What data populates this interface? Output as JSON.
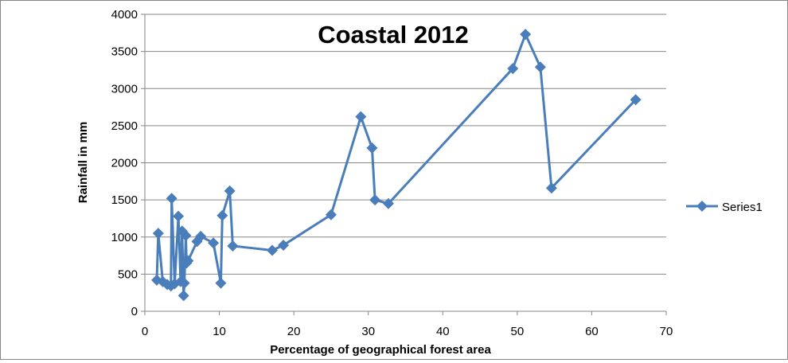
{
  "chart_data": {
    "type": "scatter",
    "title": "Coastal 2012",
    "xlabel": "Percentage of geographical  forest area",
    "ylabel": "Rainfall in mm",
    "xlim": [
      0,
      70
    ],
    "ylim": [
      0,
      4000
    ],
    "xticks": [
      0,
      10,
      20,
      30,
      40,
      50,
      60,
      70
    ],
    "yticks": [
      0,
      500,
      1000,
      1500,
      2000,
      2500,
      3000,
      3500,
      4000
    ],
    "grid": "horizontal",
    "legend_position": "right",
    "marker": "diamond",
    "line": "straight",
    "color": "#4a7ebb",
    "series": [
      {
        "name": "Series1",
        "points": [
          [
            1.6,
            420
          ],
          [
            1.8,
            1050
          ],
          [
            2.4,
            400
          ],
          [
            3.0,
            360
          ],
          [
            3.5,
            340
          ],
          [
            3.6,
            1520
          ],
          [
            4.0,
            370
          ],
          [
            4.5,
            1280
          ],
          [
            4.8,
            400
          ],
          [
            5.0,
            1080
          ],
          [
            5.2,
            210
          ],
          [
            5.3,
            380
          ],
          [
            5.5,
            1020
          ],
          [
            5.6,
            650
          ],
          [
            5.8,
            680
          ],
          [
            7.0,
            940
          ],
          [
            7.5,
            1010
          ],
          [
            9.2,
            920
          ],
          [
            10.2,
            380
          ],
          [
            10.4,
            1290
          ],
          [
            11.4,
            1620
          ],
          [
            11.8,
            880
          ],
          [
            17.1,
            820
          ],
          [
            18.6,
            890
          ],
          [
            25.0,
            1300
          ],
          [
            29.0,
            2620
          ],
          [
            30.5,
            2200
          ],
          [
            30.9,
            1500
          ],
          [
            32.7,
            1450
          ],
          [
            49.4,
            3270
          ],
          [
            51.1,
            3730
          ],
          [
            53.1,
            3290
          ],
          [
            54.6,
            1660
          ],
          [
            65.9,
            2850
          ]
        ]
      }
    ]
  }
}
